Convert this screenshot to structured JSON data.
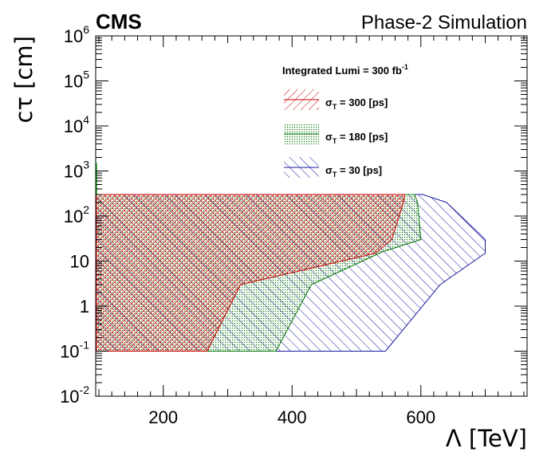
{
  "chart_data": {
    "type": "area",
    "experiment_label": "CMS",
    "subtitle": "Phase-2 Simulation",
    "xlabel": "Λ [TeV]",
    "ylabel": "cτ [cm]",
    "xlim": [
      95,
      765
    ],
    "ylim": [
      0.01,
      1000000
    ],
    "yscale": "log",
    "x_ticks": [
      200,
      400,
      600
    ],
    "x_tick_labels": [
      "200",
      "400",
      "600"
    ],
    "y_ticks": [
      {
        "value": 0.01,
        "base": "10",
        "exp": "-2"
      },
      {
        "value": 0.1,
        "base": "10",
        "exp": "-1"
      },
      {
        "value": 1,
        "base": "1",
        "exp": ""
      },
      {
        "value": 10,
        "base": "10",
        "exp": ""
      },
      {
        "value": 100,
        "base": "10",
        "exp": "2"
      },
      {
        "value": 1000,
        "base": "10",
        "exp": "3"
      },
      {
        "value": 10000,
        "base": "10",
        "exp": "4"
      },
      {
        "value": 100000,
        "base": "10",
        "exp": "5"
      },
      {
        "value": 1000000,
        "base": "10",
        "exp": "6"
      }
    ],
    "legend": {
      "header": "Integrated Lumi = 300 fb",
      "header_sup": "-1",
      "position": "top-right"
    },
    "series": [
      {
        "name": "σT = 300 [ps]",
        "sigma_symbol": "σ",
        "sigma_sub": "T",
        "label_rest": " = 300 [ps]",
        "color": "#cc0000",
        "pattern": "crosshatch",
        "points": [
          [
            96,
            0.1
          ],
          [
            96,
            300
          ],
          [
            575,
            300
          ],
          [
            573,
            200
          ],
          [
            555,
            30
          ],
          [
            530,
            15
          ],
          [
            320,
            3
          ],
          [
            268,
            0.1
          ]
        ]
      },
      {
        "name": "σT = 180 [ps]",
        "sigma_symbol": "σ",
        "sigma_sub": "T",
        "label_rest": " = 180 [ps]",
        "color": "#007700",
        "pattern": "dots",
        "points": [
          [
            96,
            0.1
          ],
          [
            96,
            300
          ],
          [
            590,
            300
          ],
          [
            595,
            200
          ],
          [
            600,
            30
          ],
          [
            540,
            16
          ],
          [
            430,
            3
          ],
          [
            375,
            0.1
          ]
        ]
      },
      {
        "name": "σT = 30 [ps]",
        "sigma_symbol": "σ",
        "sigma_sub": "T",
        "label_rest": " = 30 [ps]",
        "color": "#1a1a9f",
        "pattern": "diagonal",
        "points": [
          [
            96,
            0.1
          ],
          [
            96,
            300
          ],
          [
            603,
            300
          ],
          [
            640,
            200
          ],
          [
            700,
            30
          ],
          [
            700,
            15
          ],
          [
            630,
            3
          ],
          [
            545,
            0.1
          ]
        ]
      }
    ],
    "annotation": {
      "type": "spike",
      "x": 96,
      "y_from": 300,
      "y_to": 1500,
      "color": "#007700"
    }
  }
}
